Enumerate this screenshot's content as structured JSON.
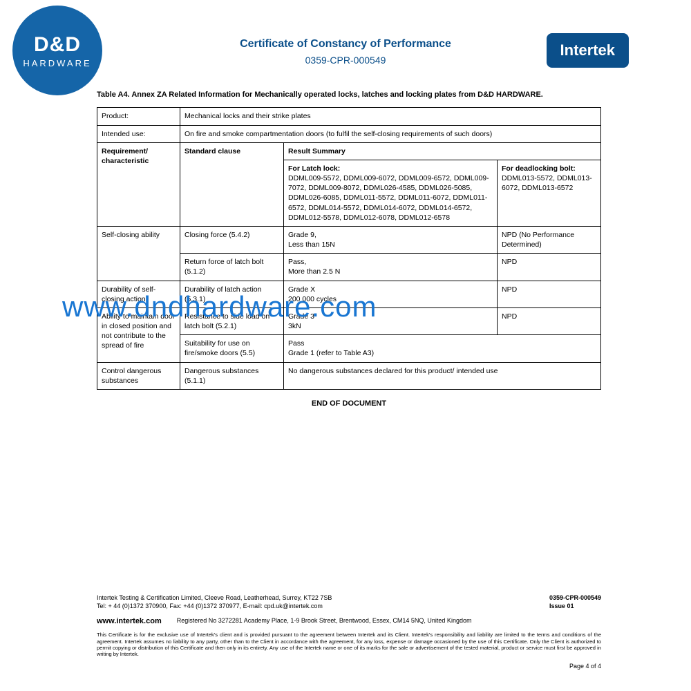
{
  "logo": {
    "main": "D&D",
    "sub": "HARDWARE"
  },
  "header": {
    "title": "Certificate of Constancy of Performance",
    "number": "0359-CPR-000549",
    "badge": "Intertek"
  },
  "caption": "Table A4. Annex ZA Related Information for Mechanically operated locks, latches and locking plates from D&D HARDWARE.",
  "rows": {
    "product_label": "Product:",
    "product_value": "Mechanical locks and their strike plates",
    "intended_label": "Intended use:",
    "intended_value": "On fire and smoke compartmentation doors (to fulfil the self-closing requirements of such doors)",
    "req_label": "Requirement/ characteristic",
    "std_label": "Standard clause",
    "result_label": "Result Summary",
    "latch_header": "For Latch lock:",
    "latch_list": "DDML009-5572, DDML009-6072, DDML009-6572, DDML009-7072, DDML009-8072, DDML026-4585, DDML026-5085, DDML026-6085, DDML011-5572, DDML011-6072, DDML011-6572, DDML014-5572, DDML014-6072, DDML014-6572, DDML012-5578, DDML012-6078, DDML012-6578",
    "dead_header": "For deadlocking bolt:",
    "dead_list": "DDML013-5572, DDML013-6072, DDML013-6572",
    "r1_req": "Self-closing ability",
    "r1a_std": "Closing force (5.4.2)",
    "r1a_latch": "Grade 9,\nLess than 15N",
    "r1a_dead": "NPD (No Performance Determined)",
    "r1b_std": "Return force of latch bolt (5.1.2)",
    "r1b_latch": "Pass,\nMore than 2.5 N",
    "r1b_dead": "NPD",
    "r2_req": "Durability of self-closing action",
    "r2_std": "Durability of latch action (5.3.1)",
    "r2_latch": "Grade X\n200 000 cycles",
    "r2_dead": "NPD",
    "r3_req": "Ability to maintain door in closed position and not contribute to the spread of fire",
    "r3a_std": "Resistance to side load on latch bolt (5.2.1)",
    "r3a_latch": "Grade 3\n3kN",
    "r3a_dead": "NPD",
    "r3b_std": "Suitability for use on fire/smoke doors (5.5)",
    "r3b_result": "Pass\nGrade 1 (refer to Table A3)",
    "r4_req": "Control dangerous substances",
    "r4_std": "Dangerous substances (5.1.1)",
    "r4_result": "No dangerous substances declared for this product/ intended use"
  },
  "end": "END OF DOCUMENT",
  "watermark": "www.dndhardware.com",
  "footer": {
    "addr1": "Intertek Testing & Certification Limited, Cleeve Road, Leatherhead, Surrey, KT22 7SB",
    "addr2": "Tel: + 44 (0)1372 370900, Fax: +44 (0)1372 370977, E-mail: cpd.uk@intertek.com",
    "ref": "0359-CPR-000549",
    "issue": "Issue 01",
    "web": "www.intertek.com",
    "reg": "Registered No 3272281  Academy Place, 1-9 Brook Street, Brentwood, Essex, CM14 5NQ, United Kingdom",
    "disclaimer": "This Certificate is for the exclusive use of Intertek's client and is provided pursuant to the agreement between Intertek and its Client. Intertek's responsibility and liability are limited to the terms and conditions of the agreement. Intertek assumes no liability to any party, other than to the Client in accordance with the agreement, for any loss, expense or damage occasioned by the use of this Certificate. Only the Client is authorized to permit copying or distribution of this Certificate and then only in its entirety. Any use of the Intertek name or one of its marks for the sale or advertisement of the tested material, product or service must first be approved in writing by Intertek.",
    "page": "Page 4 of 4"
  },
  "colors": {
    "logo_bg": "#1565a8",
    "header_text": "#0b4f8a",
    "badge_bg": "#0b4f8a",
    "watermark": "#1976d2",
    "border": "#000000",
    "background": "#ffffff"
  }
}
